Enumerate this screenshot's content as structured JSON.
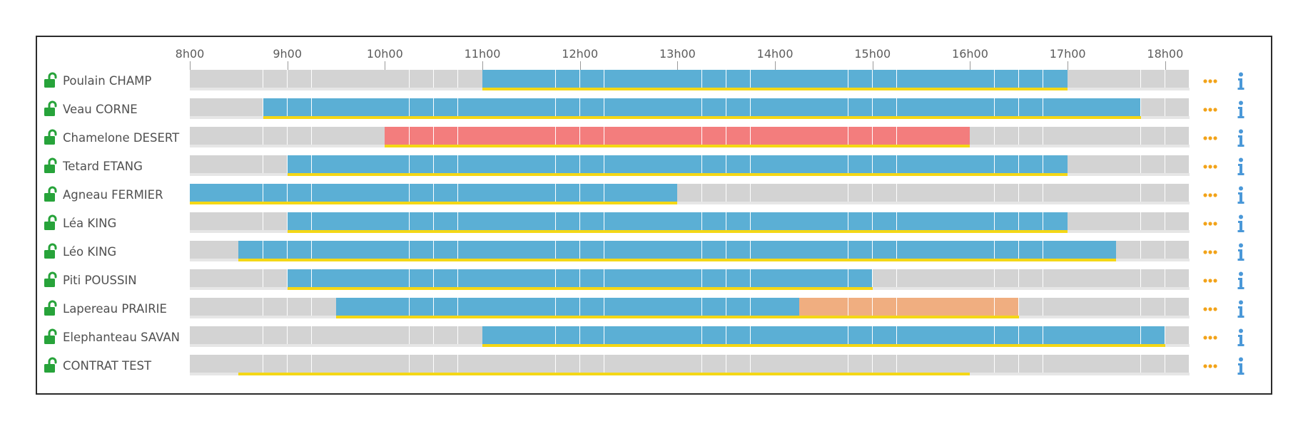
{
  "timeline": {
    "hours": [
      "8h00",
      "9h00",
      "10h00",
      "11h00",
      "12h00",
      "13h00",
      "14h00",
      "15h00",
      "16h00",
      "17h00",
      "18h00"
    ]
  },
  "colors": {
    "blue": "#5bafd5",
    "red": "#f37d7d",
    "orange": "#f0ae80",
    "empty": "#d3d3d3",
    "underline": "#f4d716",
    "lock": "#27a33a",
    "dots": "#f2a319",
    "info": "#4a98d8"
  },
  "icons": {
    "lock": "unlocked-padlock-icon",
    "more": "more-dots-icon",
    "info": "info-icon"
  },
  "rows": [
    {
      "name": "Poulain CHAMP",
      "segments": [
        {
          "from": "11h00",
          "to": "17h00",
          "color": "blue"
        }
      ]
    },
    {
      "name": "Veau CORNE",
      "segments": [
        {
          "from": "8h45",
          "to": "17h45",
          "color": "blue"
        }
      ]
    },
    {
      "name": "Chamelone DESERT",
      "segments": [
        {
          "from": "10h00",
          "to": "16h00",
          "color": "red"
        }
      ]
    },
    {
      "name": "Tetard ETANG",
      "segments": [
        {
          "from": "9h00",
          "to": "17h00",
          "color": "blue"
        }
      ]
    },
    {
      "name": "Agneau FERMIER",
      "segments": [
        {
          "from": "8h00",
          "to": "13h00",
          "color": "blue"
        }
      ]
    },
    {
      "name": "Léa KING",
      "segments": [
        {
          "from": "9h00",
          "to": "17h00",
          "color": "blue"
        }
      ]
    },
    {
      "name": "Léo KING",
      "segments": [
        {
          "from": "8h30",
          "to": "17h30",
          "color": "blue"
        }
      ]
    },
    {
      "name": "Piti POUSSIN",
      "segments": [
        {
          "from": "9h00",
          "to": "15h00",
          "color": "blue"
        }
      ]
    },
    {
      "name": "Lapereau PRAIRIE",
      "segments": [
        {
          "from": "9h30",
          "to": "14h15",
          "color": "blue"
        },
        {
          "from": "14h15",
          "to": "16h30",
          "color": "orange"
        }
      ]
    },
    {
      "name": "Elephanteau SAVAN",
      "segments": [
        {
          "from": "11h00",
          "to": "18h00",
          "color": "blue"
        }
      ]
    },
    {
      "name": "CONTRAT TEST",
      "segments": [
        {
          "from": "8h30",
          "to": "16h00",
          "color": "none"
        }
      ]
    }
  ]
}
